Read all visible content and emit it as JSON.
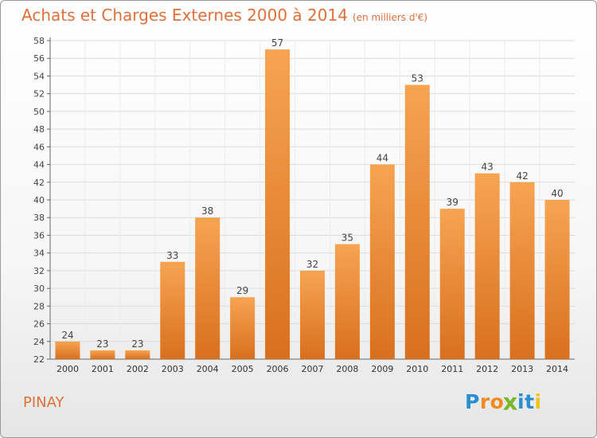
{
  "header": {
    "title": "Achats et Charges Externes 2000 à 2014",
    "subtitle": "(en milliers d'€)"
  },
  "commune": "PINAY",
  "logo": {
    "letters": [
      "P",
      "r",
      "o",
      "x",
      "i",
      "t",
      "i"
    ],
    "colors": [
      "#2a8fd0",
      "#f08a1e",
      "#f08a1e",
      "#7ab829",
      "#2a8fd0",
      "#2a8fd0",
      "#f0c419"
    ]
  },
  "colors": {
    "bar_top": "#f7a452",
    "bar_bottom": "#d8701e",
    "text": "#e0703a"
  },
  "chart_data": {
    "type": "bar",
    "categories": [
      "2000",
      "2001",
      "2002",
      "2003",
      "2004",
      "2005",
      "2006",
      "2007",
      "2008",
      "2009",
      "2010",
      "2011",
      "2012",
      "2013",
      "2014"
    ],
    "values": [
      24,
      23,
      23,
      33,
      38,
      29,
      57,
      32,
      35,
      44,
      53,
      39,
      43,
      42,
      40
    ],
    "ylim": [
      22,
      58
    ],
    "yticks": [
      22,
      24,
      26,
      28,
      30,
      32,
      34,
      36,
      38,
      40,
      42,
      44,
      46,
      48,
      50,
      52,
      54,
      56,
      58
    ],
    "grid": true,
    "data_labels": true
  }
}
